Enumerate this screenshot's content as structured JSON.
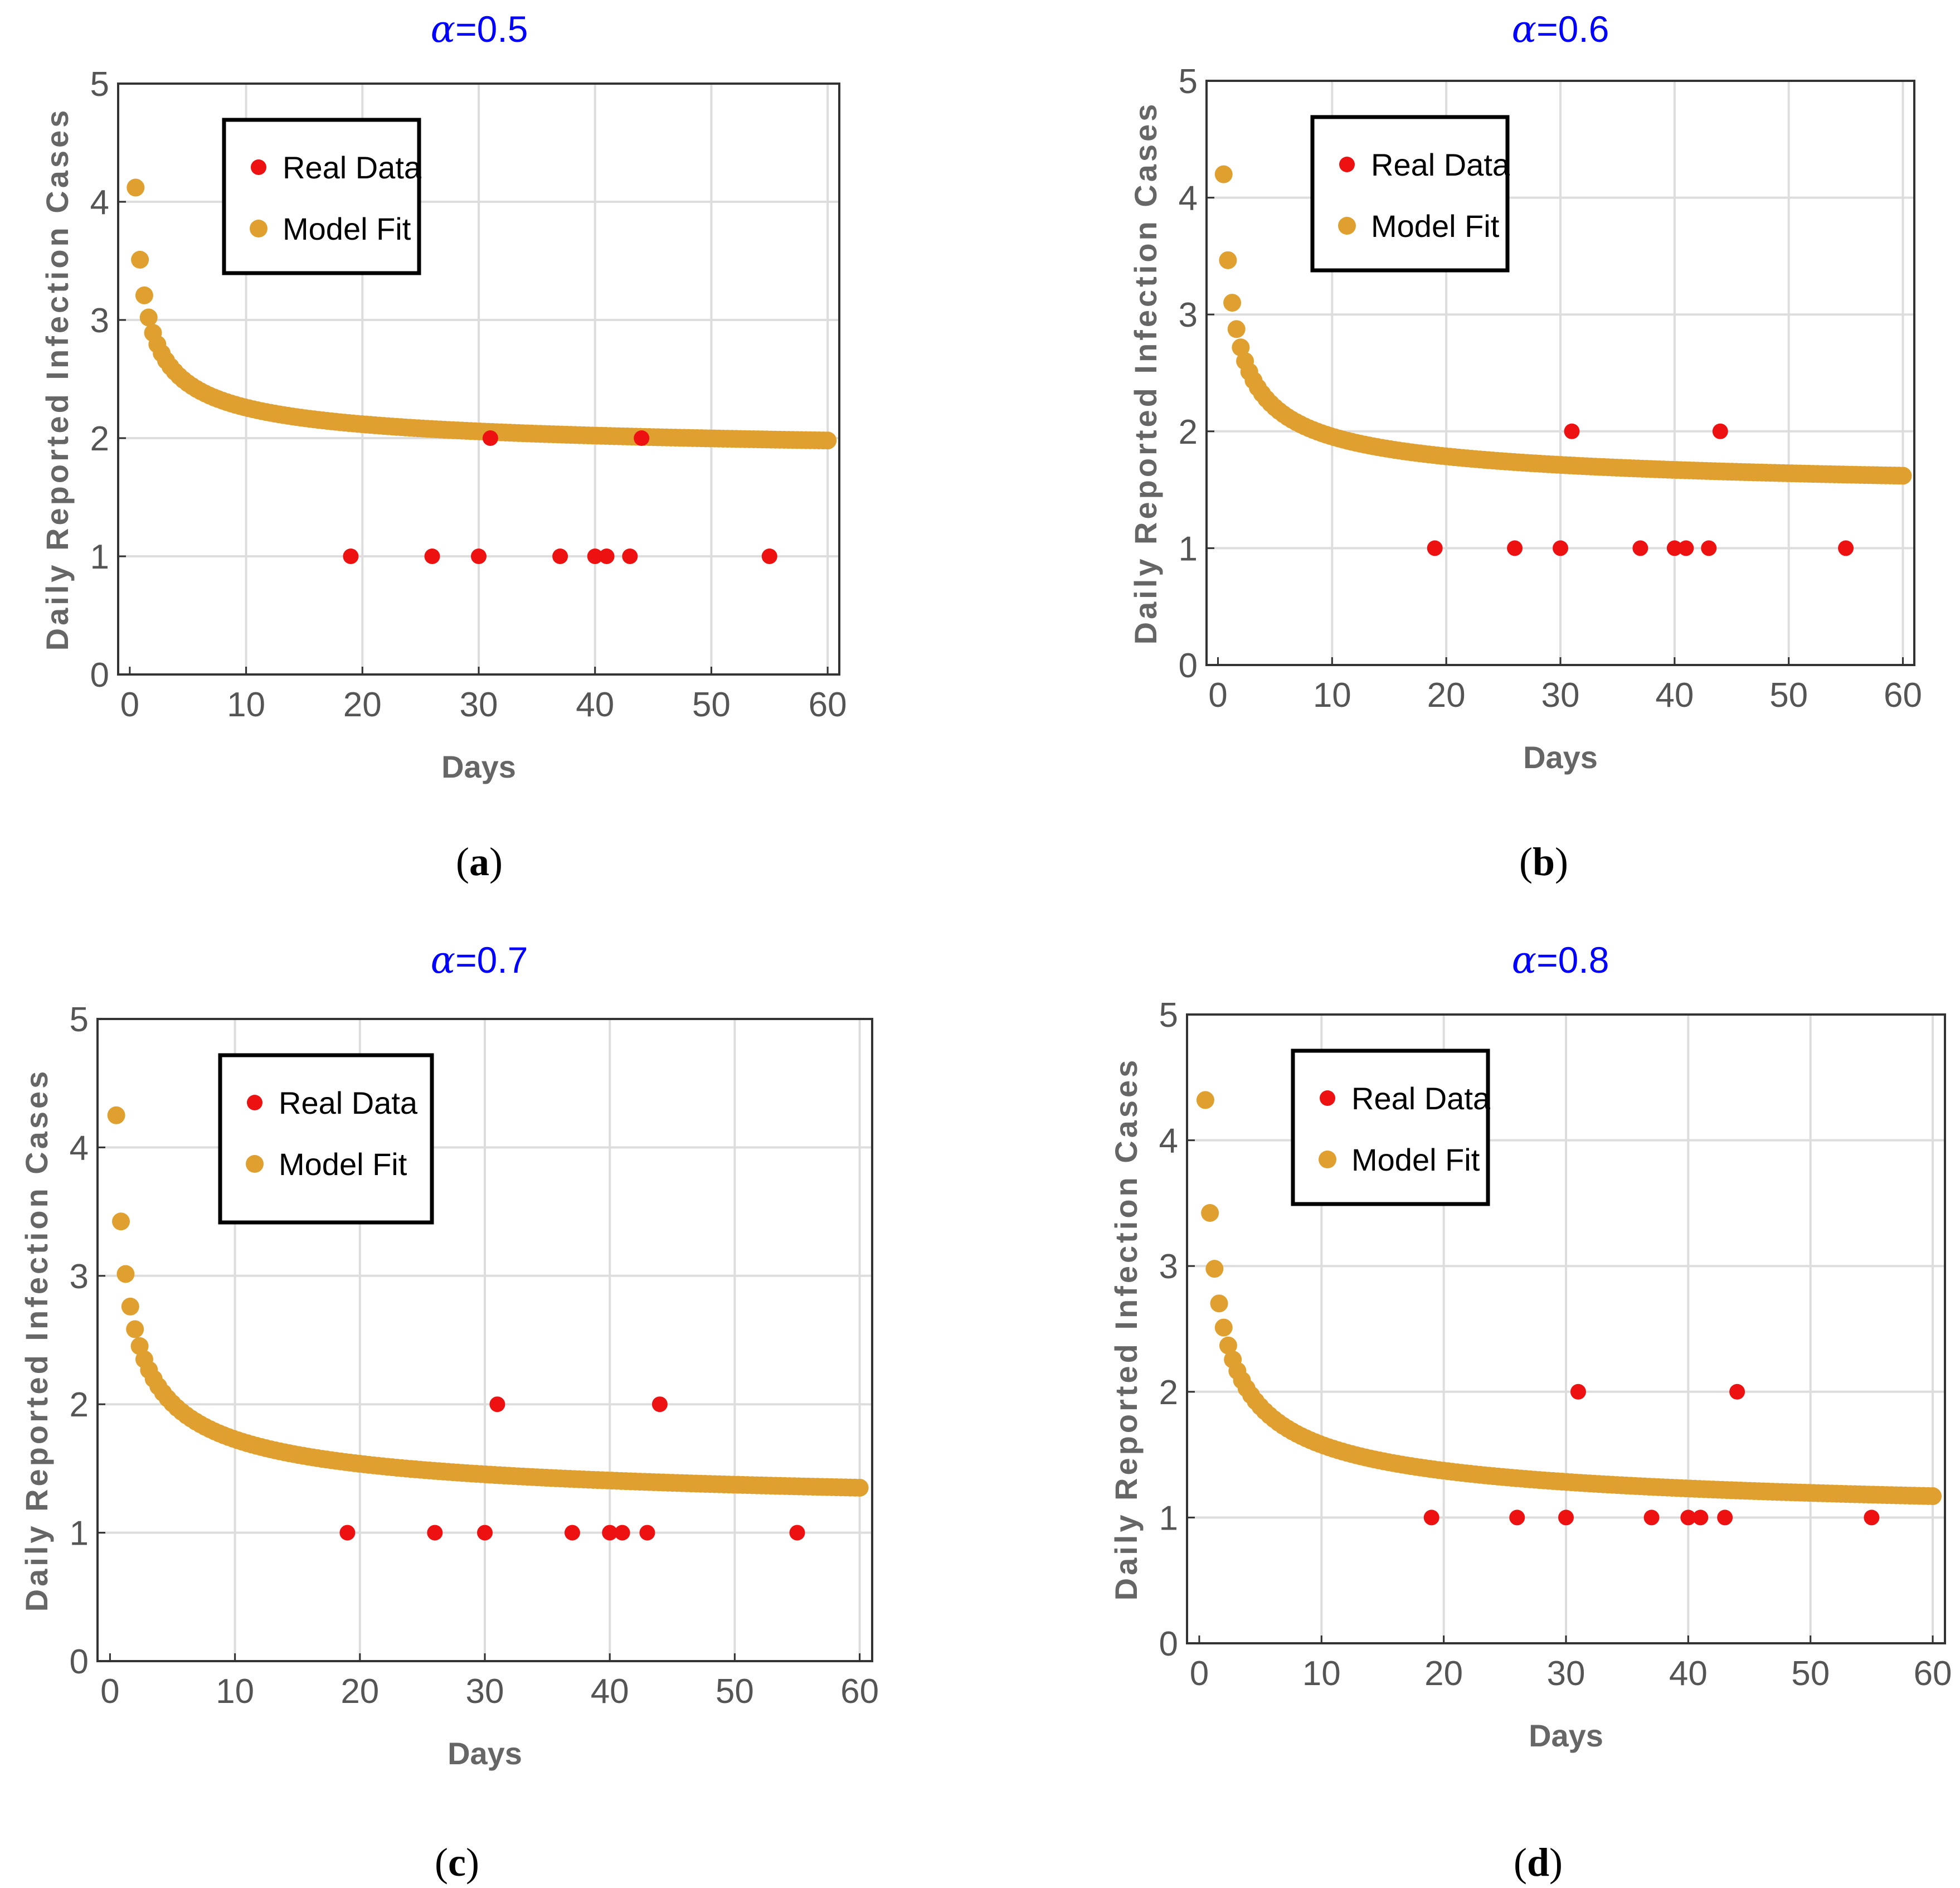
{
  "figure": {
    "panels": [
      {
        "caption": "(a)",
        "caption_letter": "a",
        "chart_title_symbol": "α",
        "chart_title_value": "=0.5"
      },
      {
        "caption": "(b)",
        "caption_letter": "b",
        "chart_title_symbol": "α",
        "chart_title_value": "=0.6"
      },
      {
        "caption": "(c)",
        "caption_letter": "c",
        "chart_title_symbol": "α",
        "chart_title_value": "=0.7"
      },
      {
        "caption": "(d)",
        "caption_letter": "d",
        "chart_title_symbol": "α",
        "chart_title_value": "=0.8"
      }
    ]
  },
  "colors": {
    "real_data": "#ee1111",
    "model_fit": "#e0a030",
    "title": "#0000ff",
    "grid": "#dddddd"
  },
  "chart_data": [
    {
      "type": "scatter",
      "title": "α=0.5",
      "xlabel": "Days",
      "ylabel": "Daily Reported Infection Cases",
      "xlim": [
        -1,
        61
      ],
      "ylim": [
        0,
        5
      ],
      "xticks": [
        0,
        10,
        20,
        30,
        40,
        50,
        60
      ],
      "yticks": [
        0,
        1,
        2,
        3,
        4,
        5
      ],
      "grid": true,
      "legend_position": "top-left",
      "series": [
        {
          "name": "Real Data",
          "x": [
            19,
            26,
            30,
            31,
            37,
            40,
            41,
            43,
            44,
            55
          ],
          "y": [
            1,
            1,
            1,
            2,
            1,
            1,
            1,
            1,
            2,
            1
          ]
        },
        {
          "name": "Model Fit",
          "x_start": 0.5,
          "x_end": 60,
          "n_points": 160,
          "y_start": 4.12,
          "y_end": 1.98,
          "curve": "power-law decay"
        }
      ]
    },
    {
      "type": "scatter",
      "title": "α=0.6",
      "xlabel": "Days",
      "ylabel": "Daily Reported Infection Cases",
      "xlim": [
        -1,
        61
      ],
      "ylim": [
        0,
        5
      ],
      "xticks": [
        0,
        10,
        20,
        30,
        40,
        50,
        60
      ],
      "yticks": [
        0,
        1,
        2,
        3,
        4,
        5
      ],
      "grid": true,
      "legend_position": "top-left",
      "series": [
        {
          "name": "Real Data",
          "x": [
            19,
            26,
            30,
            31,
            37,
            40,
            41,
            43,
            44,
            55
          ],
          "y": [
            1,
            1,
            1,
            2,
            1,
            1,
            1,
            1,
            2,
            1
          ]
        },
        {
          "name": "Model Fit",
          "x_start": 0.5,
          "x_end": 60,
          "n_points": 160,
          "y_start": 4.2,
          "y_end": 1.62,
          "curve": "power-law decay"
        }
      ]
    },
    {
      "type": "scatter",
      "title": "α=0.7",
      "xlabel": "Days",
      "ylabel": "Daily Reported Infection Cases",
      "xlim": [
        -1,
        61
      ],
      "ylim": [
        0,
        5
      ],
      "xticks": [
        0,
        10,
        20,
        30,
        40,
        50,
        60
      ],
      "yticks": [
        0,
        1,
        2,
        3,
        4,
        5
      ],
      "grid": true,
      "legend_position": "top-left",
      "series": [
        {
          "name": "Real Data",
          "x": [
            19,
            26,
            30,
            31,
            37,
            40,
            41,
            43,
            44,
            55
          ],
          "y": [
            1,
            1,
            1,
            2,
            1,
            1,
            1,
            1,
            2,
            1
          ]
        },
        {
          "name": "Model Fit",
          "x_start": 0.5,
          "x_end": 60,
          "n_points": 160,
          "y_start": 4.25,
          "y_end": 1.35,
          "curve": "power-law decay"
        }
      ]
    },
    {
      "type": "scatter",
      "title": "α=0.8",
      "xlabel": "Days",
      "ylabel": "Daily Reported Infection Cases",
      "xlim": [
        -1,
        61
      ],
      "ylim": [
        0,
        5
      ],
      "xticks": [
        0,
        10,
        20,
        30,
        40,
        50,
        60
      ],
      "yticks": [
        0,
        1,
        2,
        3,
        4,
        5
      ],
      "grid": true,
      "legend_position": "top-left",
      "series": [
        {
          "name": "Real Data",
          "x": [
            19,
            26,
            30,
            31,
            37,
            40,
            41,
            43,
            44,
            55
          ],
          "y": [
            1,
            1,
            1,
            2,
            1,
            1,
            1,
            1,
            2,
            1
          ]
        },
        {
          "name": "Model Fit",
          "x_start": 0.5,
          "x_end": 60,
          "n_points": 160,
          "y_start": 4.32,
          "y_end": 1.17,
          "curve": "power-law decay"
        }
      ]
    }
  ]
}
